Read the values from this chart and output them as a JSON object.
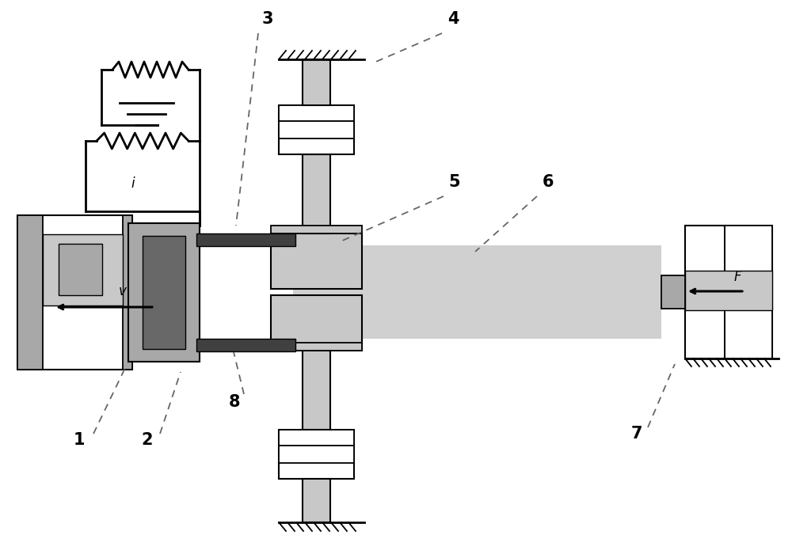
{
  "bg": "#ffffff",
  "lg": "#c8c8c8",
  "mg": "#a8a8a8",
  "dg": "#686868",
  "vdg": "#404040",
  "blk": "#000000",
  "wh": "#ffffff",
  "lfs": 15,
  "sfs": 12
}
